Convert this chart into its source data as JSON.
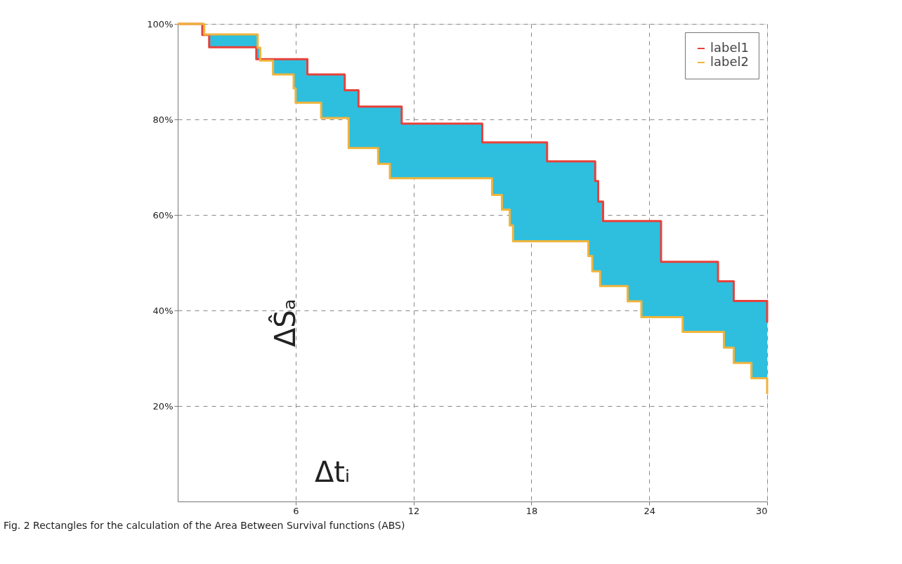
{
  "chart_data": {
    "type": "step",
    "xlim": [
      0,
      30
    ],
    "ylim": [
      0,
      100
    ],
    "xticks": [
      6,
      12,
      18,
      24,
      30
    ],
    "yticks": [
      {
        "value": 20,
        "label": "20%"
      },
      {
        "value": 40,
        "label": "40%"
      },
      {
        "value": 60,
        "label": "60%"
      },
      {
        "value": 80,
        "label": "80%"
      },
      {
        "value": 100,
        "label": "100%"
      }
    ],
    "grid": true,
    "legend": "top right",
    "line_style": "solid",
    "marker": "none",
    "annotations": [
      "ΔŜₐ",
      "Δtᵢ",
      "Fig. 2 Rectangles for the calculation of the Area Between Survival functions (ABS)"
    ],
    "series": [
      {
        "name": "label1",
        "color": "#e8413a",
        "x": [
          0,
          1.25,
          1.6,
          4.0,
          6.6,
          8.5,
          9.2,
          11.4,
          15.5,
          18.8,
          21.25,
          21.4,
          21.65,
          24.6,
          27.5,
          28.3,
          30
        ],
        "values": [
          100,
          97.7,
          95.1,
          92.6,
          89.4,
          86.1,
          82.7,
          79.1,
          75.2,
          71.2,
          67.1,
          62.8,
          58.7,
          50.2,
          46.1,
          42.0,
          37.5
        ]
      },
      {
        "name": "label2",
        "color": "#f0b43c",
        "x": [
          0,
          1.35,
          4.07,
          4.2,
          4.85,
          5.9,
          6.0,
          7.3,
          8.7,
          10.2,
          10.8,
          16.0,
          16.5,
          16.9,
          17.07,
          20.9,
          21.1,
          21.5,
          22.9,
          23.6,
          25.7,
          27.8,
          28.3,
          29.2,
          30
        ],
        "values": [
          100,
          97.8,
          95.0,
          92.3,
          89.4,
          86.5,
          83.5,
          80.3,
          74.0,
          70.7,
          67.7,
          64.2,
          61.1,
          57.8,
          54.5,
          51.4,
          48.2,
          45.1,
          41.9,
          38.6,
          35.5,
          32.2,
          29.0,
          25.8,
          22.5
        ]
      }
    ]
  }
}
